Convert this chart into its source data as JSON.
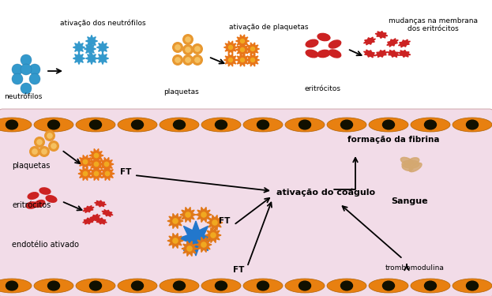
{
  "fig_width": 6.23,
  "fig_height": 3.75,
  "dpi": 100,
  "bg_color": "#ffffff",
  "bottom_section_bg": "#f2dce8",
  "cell_color": "#e88010",
  "neutrophil_color": "#3399cc",
  "platelet_color": "#e89830",
  "platelet_active_color": "#e87518",
  "erythrocyte_color": "#cc2222",
  "text_color": "#000000",
  "labels": {
    "neutrofilos": "neutrófilos",
    "ativacao_neutrofilos": "ativação dos neutrófilos",
    "plaquetas_top": "plaquetas",
    "ativacao_plaquetas": "ativação de plaquetas",
    "eritrocitos_top": "eritrócitos",
    "mudancas": "mudanças na membrana\ndos eritrócitos",
    "plaquetas_bot": "plaquetas",
    "eritrocitos_bot": "eritrócitos",
    "endotelio": "endotélio ativado",
    "formacao": "formação da fibrina",
    "ativacao_coagulo": "ativação do coágulo",
    "sangue": "Sangue",
    "trombomodulina": "trombomodulina",
    "FT": "FT"
  }
}
